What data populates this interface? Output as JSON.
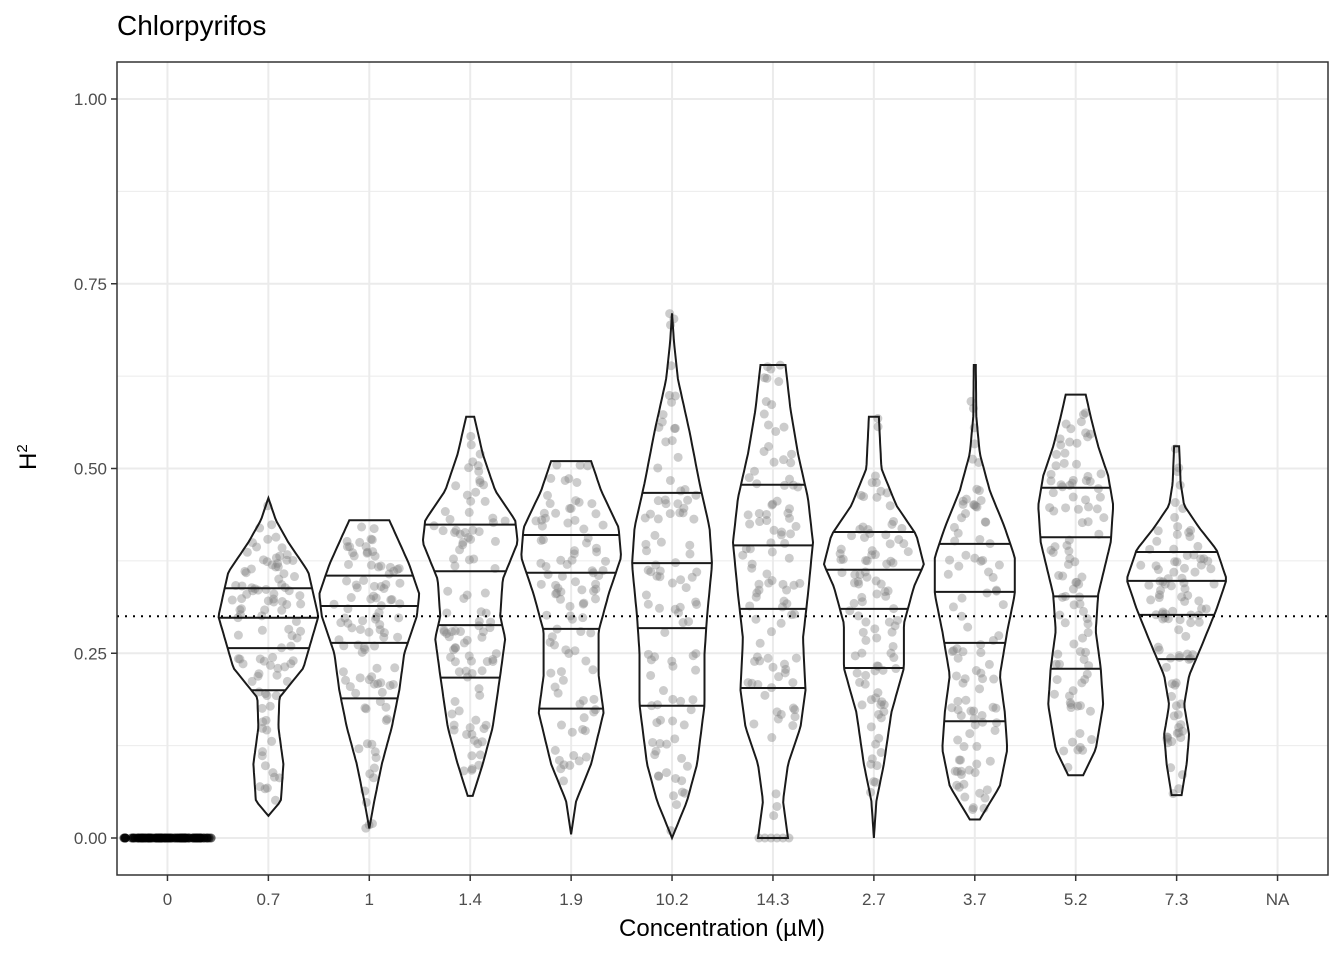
{
  "chart_data": {
    "type": "violin",
    "title": "Chlorpyrifos",
    "xlabel": "Concentration (µM)",
    "ylabel_base": "H",
    "ylabel_sup": "2",
    "ylim": [
      -0.05,
      1.05
    ],
    "yticks": [
      0,
      0.25,
      0.5,
      0.75,
      1.0
    ],
    "ytick_labels": [
      "0.00",
      "0.25",
      "0.50",
      "0.75",
      "1.00"
    ],
    "reference_line": 0.3,
    "grid": true,
    "categories": [
      "0",
      "0.7",
      "1",
      "1.4",
      "1.9",
      "10.2",
      "14.3",
      "2.7",
      "3.7",
      "5.2",
      "7.3",
      "NA"
    ],
    "groups": [
      {
        "category": "0",
        "min": 0,
        "max": 0,
        "quantile_lines": [],
        "density": [],
        "n_points": 90
      },
      {
        "category": "0.7",
        "min": 0.03,
        "max": 0.46,
        "quantile_lines": [
          0.338,
          0.298,
          0.257,
          0.2
        ],
        "density": [
          [
            0.03,
            0
          ],
          [
            0.05,
            0.25
          ],
          [
            0.1,
            0.3
          ],
          [
            0.15,
            0.2
          ],
          [
            0.19,
            0.22
          ],
          [
            0.23,
            0.7
          ],
          [
            0.3,
            1
          ],
          [
            0.36,
            0.8
          ],
          [
            0.4,
            0.4
          ],
          [
            0.43,
            0.15
          ],
          [
            0.46,
            0
          ]
        ],
        "n_points": 100
      },
      {
        "category": "1",
        "min": 0.013,
        "max": 0.43,
        "quantile_lines": [
          0.355,
          0.314,
          0.264,
          0.189
        ],
        "density": [
          [
            0.013,
            0
          ],
          [
            0.05,
            0.1
          ],
          [
            0.1,
            0.25
          ],
          [
            0.15,
            0.45
          ],
          [
            0.2,
            0.6
          ],
          [
            0.25,
            0.7
          ],
          [
            0.3,
            0.95
          ],
          [
            0.33,
            1
          ],
          [
            0.37,
            0.8
          ],
          [
            0.4,
            0.6
          ],
          [
            0.43,
            0.4
          ]
        ],
        "n_points": 100
      },
      {
        "category": "1.4",
        "min": 0.057,
        "max": 0.57,
        "quantile_lines": [
          0.424,
          0.361,
          0.288,
          0.217
        ],
        "density": [
          [
            0.057,
            0.05
          ],
          [
            0.1,
            0.25
          ],
          [
            0.15,
            0.45
          ],
          [
            0.22,
            0.6
          ],
          [
            0.27,
            0.7
          ],
          [
            0.3,
            0.6
          ],
          [
            0.35,
            0.65
          ],
          [
            0.4,
            0.95
          ],
          [
            0.43,
            0.9
          ],
          [
            0.47,
            0.5
          ],
          [
            0.52,
            0.25
          ],
          [
            0.57,
            0.08
          ]
        ],
        "n_points": 100
      },
      {
        "category": "1.9",
        "min": 0.005,
        "max": 0.51,
        "quantile_lines": [
          0.41,
          0.359,
          0.283,
          0.175
        ],
        "density": [
          [
            0.005,
            0
          ],
          [
            0.05,
            0.1
          ],
          [
            0.1,
            0.4
          ],
          [
            0.17,
            0.65
          ],
          [
            0.22,
            0.55
          ],
          [
            0.28,
            0.55
          ],
          [
            0.33,
            0.75
          ],
          [
            0.38,
            1
          ],
          [
            0.42,
            0.95
          ],
          [
            0.47,
            0.6
          ],
          [
            0.51,
            0.4
          ]
        ],
        "n_points": 100
      },
      {
        "category": "10.2",
        "min": 0,
        "max": 0.71,
        "quantile_lines": [
          0.467,
          0.372,
          0.284,
          0.179
        ],
        "density": [
          [
            0,
            0
          ],
          [
            0.05,
            0.3
          ],
          [
            0.1,
            0.5
          ],
          [
            0.18,
            0.65
          ],
          [
            0.25,
            0.65
          ],
          [
            0.3,
            0.7
          ],
          [
            0.37,
            0.8
          ],
          [
            0.42,
            0.75
          ],
          [
            0.48,
            0.55
          ],
          [
            0.55,
            0.35
          ],
          [
            0.62,
            0.12
          ],
          [
            0.67,
            0.04
          ],
          [
            0.71,
            0
          ]
        ],
        "n_points": 100
      },
      {
        "category": "14.3",
        "min": 0,
        "max": 0.64,
        "quantile_lines": [
          0.478,
          0.396,
          0.31,
          0.203
        ],
        "density": [
          [
            0,
            0.3
          ],
          [
            0.05,
            0.2
          ],
          [
            0.1,
            0.3
          ],
          [
            0.15,
            0.55
          ],
          [
            0.2,
            0.65
          ],
          [
            0.27,
            0.6
          ],
          [
            0.33,
            0.7
          ],
          [
            0.4,
            0.8
          ],
          [
            0.46,
            0.7
          ],
          [
            0.52,
            0.5
          ],
          [
            0.58,
            0.35
          ],
          [
            0.64,
            0.25
          ]
        ],
        "n_points": 100
      },
      {
        "category": "2.7",
        "min": 0,
        "max": 0.57,
        "quantile_lines": [
          0.414,
          0.363,
          0.31,
          0.23
        ],
        "density": [
          [
            0,
            0
          ],
          [
            0.05,
            0.05
          ],
          [
            0.1,
            0.2
          ],
          [
            0.17,
            0.35
          ],
          [
            0.23,
            0.6
          ],
          [
            0.29,
            0.6
          ],
          [
            0.34,
            0.8
          ],
          [
            0.37,
            1
          ],
          [
            0.41,
            0.85
          ],
          [
            0.45,
            0.45
          ],
          [
            0.5,
            0.15
          ],
          [
            0.57,
            0.1
          ]
        ],
        "n_points": 100
      },
      {
        "category": "3.7",
        "min": 0.025,
        "max": 0.64,
        "quantile_lines": [
          0.398,
          0.333,
          0.264,
          0.158
        ],
        "density": [
          [
            0.025,
            0.1
          ],
          [
            0.07,
            0.5
          ],
          [
            0.12,
            0.65
          ],
          [
            0.17,
            0.6
          ],
          [
            0.22,
            0.5
          ],
          [
            0.28,
            0.65
          ],
          [
            0.33,
            0.8
          ],
          [
            0.38,
            0.8
          ],
          [
            0.42,
            0.6
          ],
          [
            0.47,
            0.3
          ],
          [
            0.52,
            0.1
          ],
          [
            0.57,
            0.03
          ],
          [
            0.64,
            0.02
          ]
        ],
        "n_points": 100
      },
      {
        "category": "5.2",
        "min": 0.085,
        "max": 0.6,
        "quantile_lines": [
          0.474,
          0.407,
          0.327,
          0.229
        ],
        "density": [
          [
            0.085,
            0.15
          ],
          [
            0.12,
            0.4
          ],
          [
            0.18,
            0.55
          ],
          [
            0.23,
            0.5
          ],
          [
            0.28,
            0.4
          ],
          [
            0.33,
            0.45
          ],
          [
            0.4,
            0.7
          ],
          [
            0.45,
            0.75
          ],
          [
            0.49,
            0.65
          ],
          [
            0.53,
            0.45
          ],
          [
            0.57,
            0.3
          ],
          [
            0.6,
            0.2
          ]
        ],
        "n_points": 100
      },
      {
        "category": "7.3",
        "min": 0.058,
        "max": 0.53,
        "quantile_lines": [
          0.387,
          0.348,
          0.302,
          0.242
        ],
        "density": [
          [
            0.058,
            0.1
          ],
          [
            0.1,
            0.2
          ],
          [
            0.14,
            0.25
          ],
          [
            0.18,
            0.15
          ],
          [
            0.22,
            0.25
          ],
          [
            0.26,
            0.5
          ],
          [
            0.31,
            0.8
          ],
          [
            0.35,
            1
          ],
          [
            0.39,
            0.8
          ],
          [
            0.42,
            0.45
          ],
          [
            0.45,
            0.15
          ],
          [
            0.48,
            0.08
          ],
          [
            0.53,
            0.05
          ]
        ],
        "n_points": 100
      },
      {
        "category": "NA",
        "min": null,
        "max": null,
        "quantile_lines": [],
        "density": [],
        "n_points": 0
      }
    ],
    "colors": {
      "point": "#7f7f7f",
      "zero_point": "#000000",
      "outline": "#1a1a1a",
      "grid": "#ebebeb"
    }
  }
}
